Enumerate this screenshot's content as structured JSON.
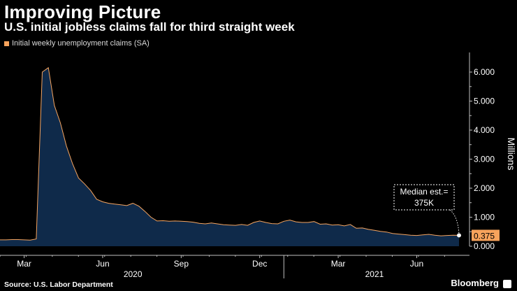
{
  "title": "Improving Picture",
  "subtitle": "U.S. initial jobless claims fall for third straight week",
  "legend": [
    {
      "label": "Initial weekly unemployment claims (SA)",
      "color": "#f7a35c"
    }
  ],
  "source": "Source: U.S. Labor Department",
  "brand": "Bloomberg",
  "colors": {
    "background": "#000000",
    "area_fill": "#0f2a4a",
    "line": "#f4a460",
    "axis": "#bfbfbf",
    "last_value_badge": "#f7a35c"
  },
  "chart_data": {
    "type": "area",
    "title": "Improving Picture",
    "ylabel": "Millions",
    "ylim": [
      0,
      6.0
    ],
    "y_ticks": [
      "0.000",
      "1.000",
      "2.000",
      "3.000",
      "4.000",
      "5.000",
      "6.000"
    ],
    "x_range_weeks": [
      0,
      76
    ],
    "month_ticks": [
      {
        "label": "Mar",
        "week": 4
      },
      {
        "label": "Jun",
        "week": 17
      },
      {
        "label": "Sep",
        "week": 30
      },
      {
        "label": "Dec",
        "week": 43
      },
      {
        "label": "Mar",
        "week": 56
      },
      {
        "label": "Jun",
        "week": 69
      }
    ],
    "year_labels": [
      {
        "label": "2020",
        "week": 22
      },
      {
        "label": "2021",
        "week": 62
      }
    ],
    "year_divider_week": 47,
    "series": [
      {
        "name": "Initial weekly unemployment claims (SA)",
        "values": [
          0.22,
          0.22,
          0.23,
          0.23,
          0.22,
          0.21,
          0.25,
          6.0,
          6.15,
          4.85,
          4.25,
          3.45,
          2.85,
          2.35,
          2.15,
          1.92,
          1.62,
          1.53,
          1.48,
          1.45,
          1.43,
          1.4,
          1.48,
          1.38,
          1.2,
          1.0,
          0.87,
          0.88,
          0.86,
          0.87,
          0.86,
          0.85,
          0.83,
          0.79,
          0.77,
          0.8,
          0.77,
          0.74,
          0.73,
          0.72,
          0.75,
          0.72,
          0.82,
          0.87,
          0.82,
          0.78,
          0.77,
          0.86,
          0.9,
          0.84,
          0.82,
          0.82,
          0.85,
          0.76,
          0.77,
          0.73,
          0.74,
          0.7,
          0.75,
          0.62,
          0.63,
          0.58,
          0.55,
          0.51,
          0.49,
          0.44,
          0.42,
          0.4,
          0.38,
          0.37,
          0.39,
          0.41,
          0.38,
          0.36,
          0.37,
          0.38,
          0.375
        ]
      }
    ],
    "last_value_label": "0.375",
    "annotation": {
      "lines": [
        "Median est.=",
        "375K"
      ],
      "value": 0.375
    }
  }
}
